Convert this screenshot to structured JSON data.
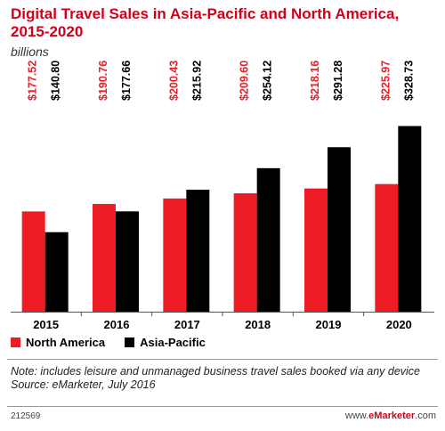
{
  "title": "Digital Travel Sales in Asia-Pacific and North America, 2015-2020",
  "subtitle": "billions",
  "note": "Note: includes leisure and unmanaged business travel sales booked via any device",
  "source": "Source: eMarketer, July 2016",
  "code": "212569",
  "brand_prefix": "www.",
  "brand_name": "eMarketer",
  "brand_suffix": ".com",
  "colors": {
    "north_america": "#ee1c25",
    "asia_pacific": "#000000",
    "title": "#d0021b"
  },
  "chart_data": {
    "type": "bar",
    "title": "Digital Travel Sales in Asia-Pacific and North America, 2015-2020",
    "subtitle": "billions",
    "categories": [
      "2015",
      "2016",
      "2017",
      "2018",
      "2019",
      "2020"
    ],
    "series": [
      {
        "name": "North America",
        "values": [
          177.52,
          190.76,
          200.43,
          209.6,
          218.16,
          225.97
        ],
        "labels": [
          "$177.52",
          "$190.76",
          "$200.43",
          "$209.60",
          "$218.16",
          "$225.97"
        ]
      },
      {
        "name": "Asia-Pacific",
        "values": [
          140.8,
          177.66,
          215.92,
          254.12,
          291.28,
          328.73
        ],
        "labels": [
          "$140.80",
          "$177.66",
          "$215.92",
          "$254.12",
          "$291.28",
          "$328.73"
        ]
      }
    ],
    "ylim": [
      0,
      350
    ],
    "legend": "bottom-left",
    "grid": false
  }
}
